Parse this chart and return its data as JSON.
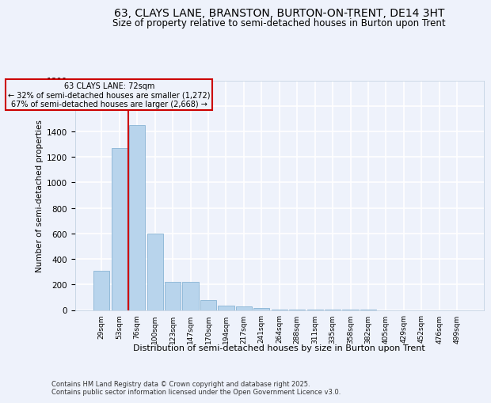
{
  "title": "63, CLAYS LANE, BRANSTON, BURTON-ON-TRENT, DE14 3HT",
  "subtitle": "Size of property relative to semi-detached houses in Burton upon Trent",
  "xlabel": "Distribution of semi-detached houses by size in Burton upon Trent",
  "ylabel": "Number of semi-detached properties",
  "footnote1": "Contains HM Land Registry data © Crown copyright and database right 2025.",
  "footnote2": "Contains public sector information licensed under the Open Government Licence v3.0.",
  "categories": [
    "29sqm",
    "53sqm",
    "76sqm",
    "100sqm",
    "123sqm",
    "147sqm",
    "170sqm",
    "194sqm",
    "217sqm",
    "241sqm",
    "264sqm",
    "288sqm",
    "311sqm",
    "335sqm",
    "358sqm",
    "382sqm",
    "405sqm",
    "429sqm",
    "452sqm",
    "476sqm",
    "499sqm"
  ],
  "values": [
    305,
    1270,
    1450,
    600,
    220,
    220,
    75,
    35,
    25,
    15,
    5,
    2,
    2,
    1,
    1,
    1,
    0,
    0,
    0,
    0,
    0
  ],
  "bar_color": "#b8d4ec",
  "bar_edge_color": "#7aaace",
  "reference_line_x": 1.5,
  "reference_label": "63 CLAYS LANE: 72sqm",
  "annotation_line1": "← 32% of semi-detached houses are smaller (1,272)",
  "annotation_line2": "67% of semi-detached houses are larger (2,668) →",
  "box_color": "#cc0000",
  "ylim": [
    0,
    1800
  ],
  "yticks": [
    0,
    200,
    400,
    600,
    800,
    1000,
    1200,
    1400,
    1600,
    1800
  ],
  "bg_color": "#eef2fb",
  "grid_color": "#ffffff",
  "title_fontsize": 10,
  "subtitle_fontsize": 8.5
}
